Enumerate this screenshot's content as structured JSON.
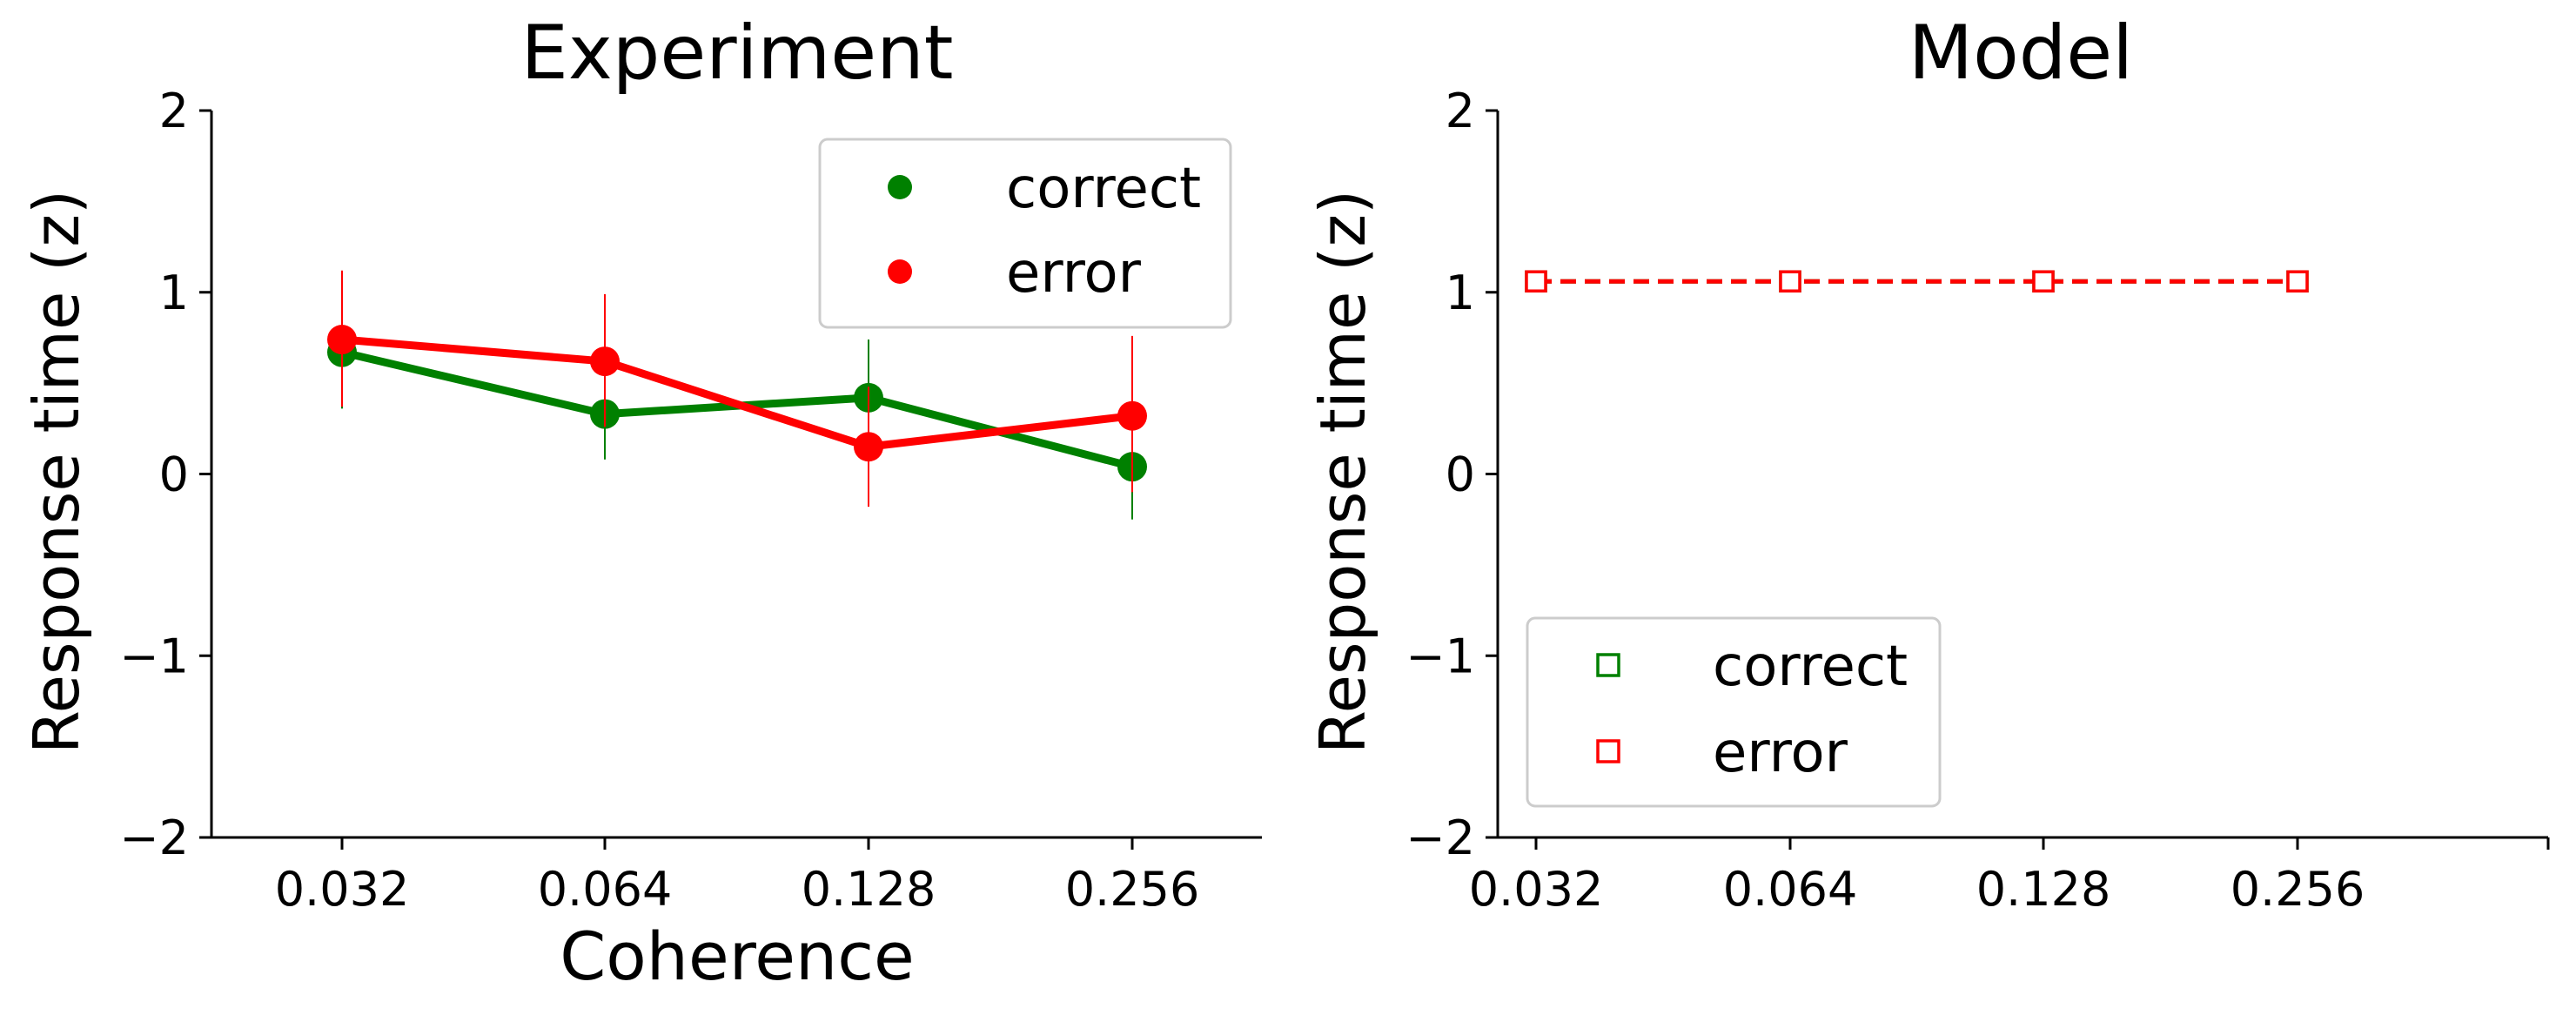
{
  "chart_data": [
    {
      "type": "line",
      "title": "Experiment",
      "xlabel": "Coherence",
      "ylabel": "Response time (z)",
      "categories": [
        "0.032",
        "0.064",
        "0.128",
        "0.256"
      ],
      "ylim": [
        -2,
        2
      ],
      "yticks": [
        "−2",
        "−1",
        "0",
        "1",
        "2"
      ],
      "legend_position": "top-right",
      "series": [
        {
          "name": "correct",
          "color": "#008000",
          "marker": "filled-circle",
          "values": [
            0.67,
            0.33,
            0.42,
            0.04
          ],
          "err_low": [
            0.36,
            0.08,
            0.12,
            -0.25
          ],
          "err_high": [
            0.98,
            0.6,
            0.74,
            0.34
          ]
        },
        {
          "name": "error",
          "color": "#ff0000",
          "marker": "filled-circle",
          "values": [
            0.74,
            0.62,
            0.15,
            0.32
          ],
          "err_low": [
            0.37,
            0.26,
            -0.18,
            -0.1
          ],
          "err_high": [
            1.12,
            0.99,
            0.48,
            0.76
          ]
        }
      ]
    },
    {
      "type": "line",
      "title": "Model",
      "xlabel": "",
      "ylabel": "Response time (z)",
      "categories": [
        "0.032",
        "0.064",
        "0.128",
        "0.256"
      ],
      "ylim": [
        -2,
        2
      ],
      "yticks": [
        "−2",
        "−1",
        "0",
        "1",
        "2"
      ],
      "legend_position": "bottom-left",
      "series": [
        {
          "name": "correct",
          "color": "#008000",
          "marker": "open-square",
          "linestyle": "dashed",
          "values": [
            1.06,
            1.06,
            1.06,
            1.06
          ]
        },
        {
          "name": "error",
          "color": "#ff0000",
          "marker": "open-square",
          "linestyle": "dashed",
          "values": [
            1.06,
            1.06,
            1.06,
            1.06
          ]
        }
      ]
    }
  ]
}
